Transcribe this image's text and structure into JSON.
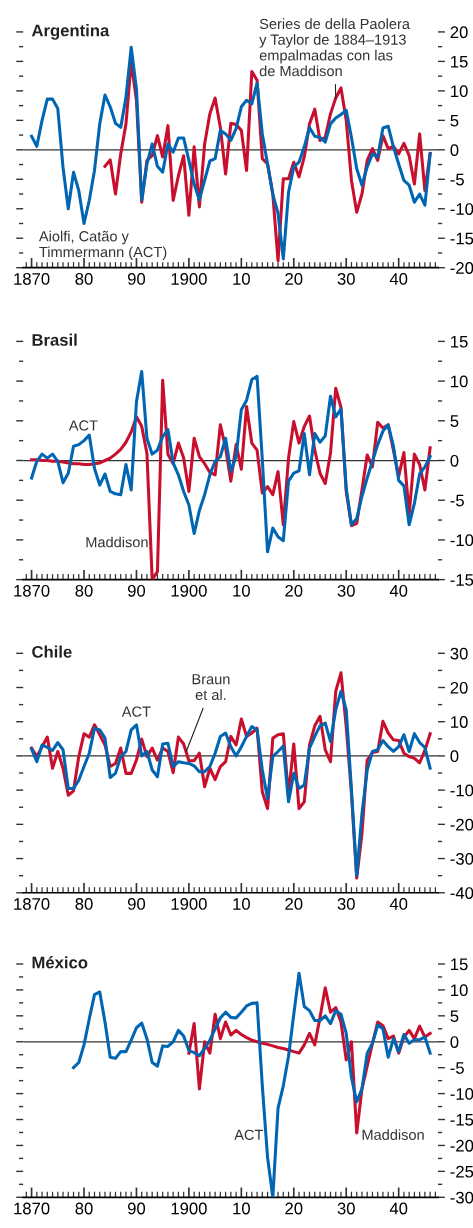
{
  "chart_data": [
    {
      "type": "line",
      "title": "Argentina",
      "x": [
        1870,
        1871,
        1872,
        1873,
        1874,
        1875,
        1876,
        1877,
        1878,
        1879,
        1880,
        1881,
        1882,
        1883,
        1884,
        1885,
        1886,
        1887,
        1888,
        1889,
        1890,
        1891,
        1892,
        1893,
        1894,
        1895,
        1896,
        1897,
        1898,
        1899,
        1900,
        1901,
        1902,
        1903,
        1904,
        1905,
        1906,
        1907,
        1908,
        1909,
        1910,
        1911,
        1912,
        1913,
        1914,
        1915,
        1916,
        1917,
        1918,
        1919,
        1920,
        1921,
        1922,
        1923,
        1924,
        1925,
        1926,
        1927,
        1928,
        1929,
        1930,
        1931,
        1932,
        1933,
        1934,
        1935,
        1936,
        1937,
        1938,
        1939,
        1940,
        1941,
        1942,
        1943,
        1944,
        1945,
        1946
      ],
      "series": [
        {
          "color": "#c8102e",
          "x": [
            1884,
            1885,
            1886,
            1887,
            1888,
            1889,
            1890,
            1891,
            1892,
            1893,
            1894,
            1895,
            1896,
            1897,
            1898,
            1899,
            1900,
            1901,
            1902,
            1903,
            1904,
            1905,
            1906,
            1907,
            1908,
            1909,
            1910,
            1911,
            1912,
            1913,
            1914,
            1915,
            1916,
            1917,
            1918,
            1919,
            1920,
            1921,
            1922,
            1923,
            1924,
            1925,
            1926,
            1927,
            1928,
            1929,
            1930,
            1931,
            1932,
            1933,
            1934,
            1935,
            1936,
            1937,
            1938,
            1939,
            1940,
            1941,
            1942,
            1943,
            1944,
            1945,
            1946
          ],
          "values": [
            -2.8,
            -1.7,
            -7.5,
            -0.7,
            4.4,
            14.9,
            8.4,
            -8.9,
            -1.8,
            -1,
            2.4,
            -1.2,
            4.1,
            -8.6,
            -4.4,
            -1,
            -11.1,
            0.5,
            -9.7,
            1,
            6.1,
            8.8,
            3.8,
            -4.1,
            4.5,
            4.3,
            3.3,
            -3.5,
            13.3,
            11.8,
            -1.5,
            -2.4,
            -7.5,
            -18.8,
            -4.9,
            -4.9,
            -2.1,
            -4.6,
            -1.2,
            4.4,
            6.9,
            1.6,
            2.1,
            6.1,
            8.8,
            10.5,
            5,
            -5.2,
            -10.6,
            -7.5,
            -1.8,
            0.2,
            -1.8,
            2.4,
            0.2,
            0.6,
            -0.7,
            1.1,
            -1,
            -5.8,
            2.7,
            -6.9,
            -0.6
          ]
        },
        {
          "color": "#0066b3",
          "values": [
            2.3,
            0.6,
            5,
            8.6,
            8.6,
            7,
            -3,
            -10,
            -3.8,
            -6.9,
            -12.5,
            -8.6,
            -3.5,
            4.4,
            9.3,
            7.3,
            4.5,
            3.8,
            8.9,
            17.4,
            10.3,
            -8.5,
            -2.4,
            1,
            -2.8,
            -3.8,
            1,
            -0.4,
            2,
            2,
            -1.8,
            -5.8,
            -8.5,
            -5.2,
            -1.9,
            -1.5,
            3.3,
            2.7,
            1.6,
            3.6,
            7.3,
            8.4,
            7.8,
            11.3,
            2.7,
            -2.4,
            -7.5,
            -10.8,
            -18.5,
            -7.2,
            -2.9,
            -2.1,
            0.5,
            3.8,
            2.3,
            2.1,
            1.3,
            4.4,
            5.4,
            6,
            6.7,
            2.1,
            -3.2,
            -6,
            -2.9,
            -0.7,
            -1.2,
            3.7,
            4,
            0.5,
            -2.4,
            -5.2,
            -6,
            -8.9,
            -7.5,
            -9.4,
            -0.7
          ]
        }
      ],
      "annotations": [
        {
          "text": "Series de della Paolera\ny Taylor de 1884–1913\nempalmadas con las\nde Maddison",
          "x": 1928,
          "y": 8.8
        },
        {
          "text": "Aiolfi, Catão y\nTimmermann (ACT)",
          "x": 1880,
          "y": -12.5
        }
      ],
      "ref_lines": [
        {
          "axis": "y",
          "value": 0,
          "color": "#333333"
        }
      ],
      "xlim": [
        1868.4,
        1947.5
      ],
      "xticks": [
        {
          "value": 1870,
          "label": "1870"
        },
        {
          "value": 1880,
          "label": "80"
        },
        {
          "value": 1890,
          "label": "90"
        },
        {
          "value": 1900,
          "label": "1900"
        },
        {
          "value": 1910,
          "label": "10"
        },
        {
          "value": 1920,
          "label": "20"
        },
        {
          "value": 1930,
          "label": "30"
        },
        {
          "value": 1940,
          "label": "40"
        }
      ],
      "ylim": [
        -20,
        20
      ],
      "yticks": [
        -20,
        -15,
        -10,
        -5,
        0,
        5,
        10,
        15,
        20
      ]
    },
    {
      "type": "line",
      "title": "Brasil",
      "x": [
        1870,
        1871,
        1872,
        1873,
        1874,
        1875,
        1876,
        1877,
        1878,
        1879,
        1880,
        1881,
        1882,
        1883,
        1884,
        1885,
        1886,
        1887,
        1888,
        1889,
        1890,
        1891,
        1892,
        1893,
        1894,
        1895,
        1896,
        1897,
        1898,
        1899,
        1900,
        1901,
        1902,
        1903,
        1904,
        1905,
        1906,
        1907,
        1908,
        1909,
        1910,
        1911,
        1912,
        1913,
        1914,
        1915,
        1916,
        1917,
        1918,
        1919,
        1920,
        1921,
        1922,
        1923,
        1924,
        1925,
        1926,
        1927,
        1928,
        1929,
        1930,
        1931,
        1932,
        1933,
        1934,
        1935,
        1936,
        1937,
        1938,
        1939,
        1940,
        1941,
        1942,
        1943,
        1944,
        1945,
        1946
      ],
      "series": [
        {
          "color": "#c8102e",
          "values": [
            0.1,
            0.1,
            0,
            0,
            -0.1,
            -0.1,
            -0.2,
            -0.3,
            -0.4,
            -0.4,
            -0.5,
            -0.5,
            -0.4,
            -0.3,
            0,
            0.3,
            0.8,
            1.4,
            2.3,
            3.6,
            5.5,
            4.3,
            0.9,
            -15,
            -14,
            10.1,
            0.8,
            -0.4,
            2.2,
            0.3,
            -3.9,
            2.8,
            0.5,
            -0.4,
            -1.5,
            -1.8,
            4.5,
            1.6,
            -2.6,
            2,
            -1.1,
            6.8,
            2.2,
            1.3,
            -4.1,
            -3.3,
            -4.3,
            -1.4,
            -8.1,
            0.3,
            4.9,
            2.2,
            4.3,
            5.6,
            1.3,
            -1.6,
            -2.9,
            0.9,
            9.1,
            6.7,
            -3.9,
            -8.2,
            -7.9,
            -3.7,
            0.7,
            -0.8,
            4.8,
            4.1,
            4.5,
            1.3,
            -2,
            1,
            -6.8,
            0.8,
            -0.5,
            -3.7,
            1.6
          ]
        },
        {
          "color": "#0066b3",
          "values": [
            -2.2,
            -0.1,
            0.8,
            0.3,
            0.8,
            -0.1,
            -2.8,
            -1.6,
            1.8,
            2,
            2.5,
            3.2,
            -1,
            -3.1,
            -1.7,
            -3.9,
            -4.2,
            -4.3,
            -0.5,
            -3.7,
            7.4,
            11.2,
            2.8,
            0.8,
            1.3,
            3,
            3.9,
            -0.3,
            -1.8,
            -3.9,
            -5.6,
            -9.2,
            -6.3,
            -4.3,
            -1.8,
            -0.1,
            0.5,
            2.8,
            -1.4,
            0.5,
            6.4,
            7.6,
            10.2,
            10.6,
            0.1,
            -11.5,
            -8.5,
            -9.6,
            -10.1,
            -2.6,
            -1.6,
            -1.3,
            3.4,
            -1.8,
            3.4,
            2.3,
            3.1,
            8.1,
            5.5,
            6.5,
            -3.5,
            -8.1,
            -7.3,
            -4.5,
            -2.2,
            -0.1,
            2,
            3.7,
            4.5,
            1.8,
            -2.5,
            -3.2,
            -8.1,
            -5.4,
            -1.7,
            -0.8,
            0.5
          ]
        }
      ],
      "annotations": [
        {
          "text": "ACT",
          "x": 1881,
          "y": 3.2
        },
        {
          "text": "Maddison",
          "x": 1893,
          "y": -15
        }
      ],
      "ref_lines": [
        {
          "axis": "y",
          "value": 0,
          "color": "#333333"
        }
      ],
      "xlim": [
        1868.4,
        1947.5
      ],
      "xticks": [
        {
          "value": 1870,
          "label": "1870"
        },
        {
          "value": 1880,
          "label": "80"
        },
        {
          "value": 1890,
          "label": "90"
        },
        {
          "value": 1900,
          "label": "1900"
        },
        {
          "value": 1910,
          "label": "10"
        },
        {
          "value": 1920,
          "label": "20"
        },
        {
          "value": 1930,
          "label": "30"
        },
        {
          "value": 1940,
          "label": "40"
        }
      ],
      "ylim": [
        -15,
        15
      ],
      "yticks": [
        -15,
        -10,
        -5,
        0,
        5,
        10,
        15
      ]
    },
    {
      "type": "line",
      "title": "Chile",
      "x": [
        1870,
        1871,
        1872,
        1873,
        1874,
        1875,
        1876,
        1877,
        1878,
        1879,
        1880,
        1881,
        1882,
        1883,
        1884,
        1885,
        1886,
        1887,
        1888,
        1889,
        1890,
        1891,
        1892,
        1893,
        1894,
        1895,
        1896,
        1897,
        1898,
        1899,
        1900,
        1901,
        1902,
        1903,
        1904,
        1905,
        1906,
        1907,
        1908,
        1909,
        1910,
        1911,
        1912,
        1913,
        1914,
        1915,
        1916,
        1917,
        1918,
        1919,
        1920,
        1921,
        1922,
        1923,
        1924,
        1925,
        1926,
        1927,
        1928,
        1929,
        1930,
        1931,
        1932,
        1933,
        1934,
        1935,
        1936,
        1937,
        1938,
        1939,
        1940,
        1941,
        1942,
        1943,
        1944,
        1945,
        1946
      ],
      "series": [
        {
          "color": "#c8102e",
          "values": [
            2.3,
            -0.2,
            2.7,
            5.5,
            -3.6,
            1.3,
            -3.6,
            -11.5,
            -10.2,
            -0.2,
            6.5,
            5.5,
            9.1,
            6.2,
            3.2,
            -3.1,
            -2.2,
            2.3,
            -5.1,
            -5.1,
            -1.2,
            4.9,
            -0.2,
            2.3,
            -1.2,
            2.3,
            1.3,
            -4.9,
            5.5,
            3.5,
            -1.4,
            -1.4,
            0.8,
            -9,
            -3.6,
            -6.9,
            -3.1,
            -1.7,
            5.7,
            3.2,
            10.8,
            5.7,
            6.7,
            8.1,
            -10.5,
            -15.4,
            5.2,
            6.2,
            6.5,
            -11.5,
            3.5,
            -15.4,
            -13.4,
            3.2,
            8.8,
            11.6,
            1.8,
            -1.7,
            18.9,
            24.3,
            8.6,
            -11,
            -35.7,
            -22.7,
            -1.2,
            1,
            1.3,
            10.1,
            6.7,
            4.7,
            4.5,
            0.8,
            -0.2,
            -0.7,
            -2,
            1.6,
            6.5
          ]
        },
        {
          "color": "#0066b3",
          "values": [
            2,
            -1.7,
            3.2,
            2.5,
            1.6,
            3.9,
            1.8,
            -9.5,
            -9.5,
            -7.1,
            -3.1,
            0.8,
            8.1,
            7.6,
            5.2,
            -6.3,
            -5.1,
            -0.2,
            1.3,
            7.6,
            9.1,
            0,
            1.3,
            -4.1,
            -6.1,
            3.5,
            3.7,
            -3.1,
            -1.7,
            -2,
            -2.2,
            -2.9,
            -4.6,
            -4.6,
            -3.1,
            0.8,
            5.7,
            6.7,
            2.7,
            0,
            2.7,
            5.7,
            8.6,
            7.6,
            -4.1,
            -12.5,
            -0.2,
            1.3,
            2.9,
            -13.4,
            -5.1,
            -9.5,
            -8.5,
            2.3,
            5.7,
            8.8,
            9.6,
            4.2,
            13.5,
            18.9,
            13.5,
            -10,
            -35,
            -16.9,
            -4.1,
            1.3,
            1.8,
            4.5,
            2.7,
            1.3,
            2.7,
            6.2,
            1.3,
            6.5,
            3.9,
            2.5,
            -3.6
          ]
        }
      ],
      "annotations": [
        {
          "text": "ACT",
          "x": 1890,
          "y": 9.1
        },
        {
          "text": "Braun\net al.",
          "x": 1899.5,
          "y": 1.3
        }
      ],
      "ref_lines": [
        {
          "axis": "y",
          "value": 0,
          "color": "#333333"
        }
      ],
      "xlim": [
        1868.4,
        1947.5
      ],
      "xticks": [
        {
          "value": 1870,
          "label": "1870"
        },
        {
          "value": 1880,
          "label": "80"
        },
        {
          "value": 1890,
          "label": "90"
        },
        {
          "value": 1900,
          "label": "1900"
        },
        {
          "value": 1910,
          "label": "10"
        },
        {
          "value": 1920,
          "label": "20"
        },
        {
          "value": 1930,
          "label": "30"
        },
        {
          "value": 1940,
          "label": "40"
        }
      ],
      "ylim": [
        -40,
        30
      ],
      "yticks": [
        -40,
        -30,
        -20,
        -10,
        0,
        10,
        20,
        30
      ]
    },
    {
      "type": "line",
      "title": "México",
      "series": [
        {
          "color": "#c8102e",
          "x": [
            1900,
            1901,
            1902,
            1903,
            1904,
            1905,
            1906,
            1907,
            1908,
            1909,
            1910,
            1911,
            1912,
            1913,
            1914,
            1915,
            1916,
            1917,
            1918,
            1919,
            1920,
            1921,
            1922,
            1923,
            1924,
            1925,
            1926,
            1927,
            1928,
            1929,
            1930,
            1931,
            1932,
            1933,
            1934,
            1935,
            1936,
            1937,
            1938,
            1939,
            1940,
            1941,
            1942,
            1943,
            1944,
            1945,
            1946
          ],
          "values": [
            -2.2,
            3.5,
            -9.1,
            0,
            -2.2,
            5.3,
            0.6,
            3.8,
            1.3,
            2.2,
            1.4,
            0.8,
            0.3,
            0,
            -0.3,
            -0.5,
            -0.8,
            -1.1,
            -1.3,
            -1.6,
            -1.9,
            -2.2,
            -0.6,
            1.6,
            -0.6,
            4.7,
            10.4,
            5.7,
            6.6,
            3.8,
            -3.5,
            0,
            -17.6,
            -9.1,
            -4.7,
            -0.3,
            3.8,
            3.1,
            0.6,
            1.1,
            -2.2,
            0.9,
            2.2,
            0.6,
            3,
            0.9,
            1.6
          ]
        },
        {
          "color": "#0066b3",
          "x": [
            1878,
            1879,
            1880,
            1881,
            1882,
            1883,
            1884,
            1885,
            1886,
            1887,
            1888,
            1889,
            1890,
            1891,
            1892,
            1893,
            1894,
            1895,
            1896,
            1897,
            1898,
            1899,
            1900,
            1901,
            1902,
            1903,
            1904,
            1905,
            1906,
            1907,
            1908,
            1909,
            1910,
            1911,
            1912,
            1913,
            1914,
            1915,
            1916,
            1917,
            1918,
            1919,
            1920,
            1921,
            1922,
            1923,
            1924,
            1925,
            1926,
            1927,
            1928,
            1929,
            1930,
            1931,
            1932,
            1933,
            1934,
            1935,
            1936,
            1937,
            1938,
            1939,
            1940,
            1941,
            1942,
            1943,
            1944,
            1945,
            1946
          ],
          "values": [
            -5,
            -4,
            -0.6,
            4.4,
            9.1,
            9.6,
            3.8,
            -3,
            -3.2,
            -1.9,
            -1.9,
            0.3,
            2.7,
            3.6,
            0.6,
            -4,
            -4.7,
            -0.8,
            -0.9,
            0,
            2.2,
            1.1,
            -1.7,
            -2.1,
            -2.7,
            -1.3,
            0.3,
            2.5,
            4.6,
            5.7,
            4.7,
            4.6,
            5.7,
            6.9,
            7.4,
            7.5,
            -8.5,
            -22.3,
            -30,
            -12.8,
            -8.5,
            -2.8,
            5.3,
            13.2,
            6.8,
            6,
            4.1,
            4.1,
            5,
            3.5,
            6,
            5.3,
            1.6,
            -6.9,
            -11.6,
            -9.1,
            -2.2,
            -0.3,
            3.2,
            2.5,
            -3,
            0.6,
            -1.9,
            1.4,
            -0.3,
            0.4,
            0.4,
            0.9,
            -2.2
          ]
        }
      ],
      "annotations": [
        {
          "text": "ACT",
          "x": 1915,
          "y": -22.3
        },
        {
          "text": "Maddison",
          "x": 1932,
          "y": -17.6
        }
      ],
      "ref_lines": [
        {
          "axis": "y",
          "value": 0,
          "color": "#333333"
        }
      ],
      "xlim": [
        1868.4,
        1947.5
      ],
      "xticks": [
        {
          "value": 1870,
          "label": "1870"
        },
        {
          "value": 1880,
          "label": "80"
        },
        {
          "value": 1890,
          "label": "90"
        },
        {
          "value": 1900,
          "label": "1900"
        },
        {
          "value": 1910,
          "label": "10"
        },
        {
          "value": 1920,
          "label": "20"
        },
        {
          "value": 1930,
          "label": "30"
        },
        {
          "value": 1940,
          "label": "40"
        }
      ],
      "ylim": [
        -30,
        15
      ],
      "yticks": [
        -30,
        -25,
        -20,
        -15,
        -10,
        -5,
        0,
        5,
        10,
        15
      ]
    }
  ]
}
